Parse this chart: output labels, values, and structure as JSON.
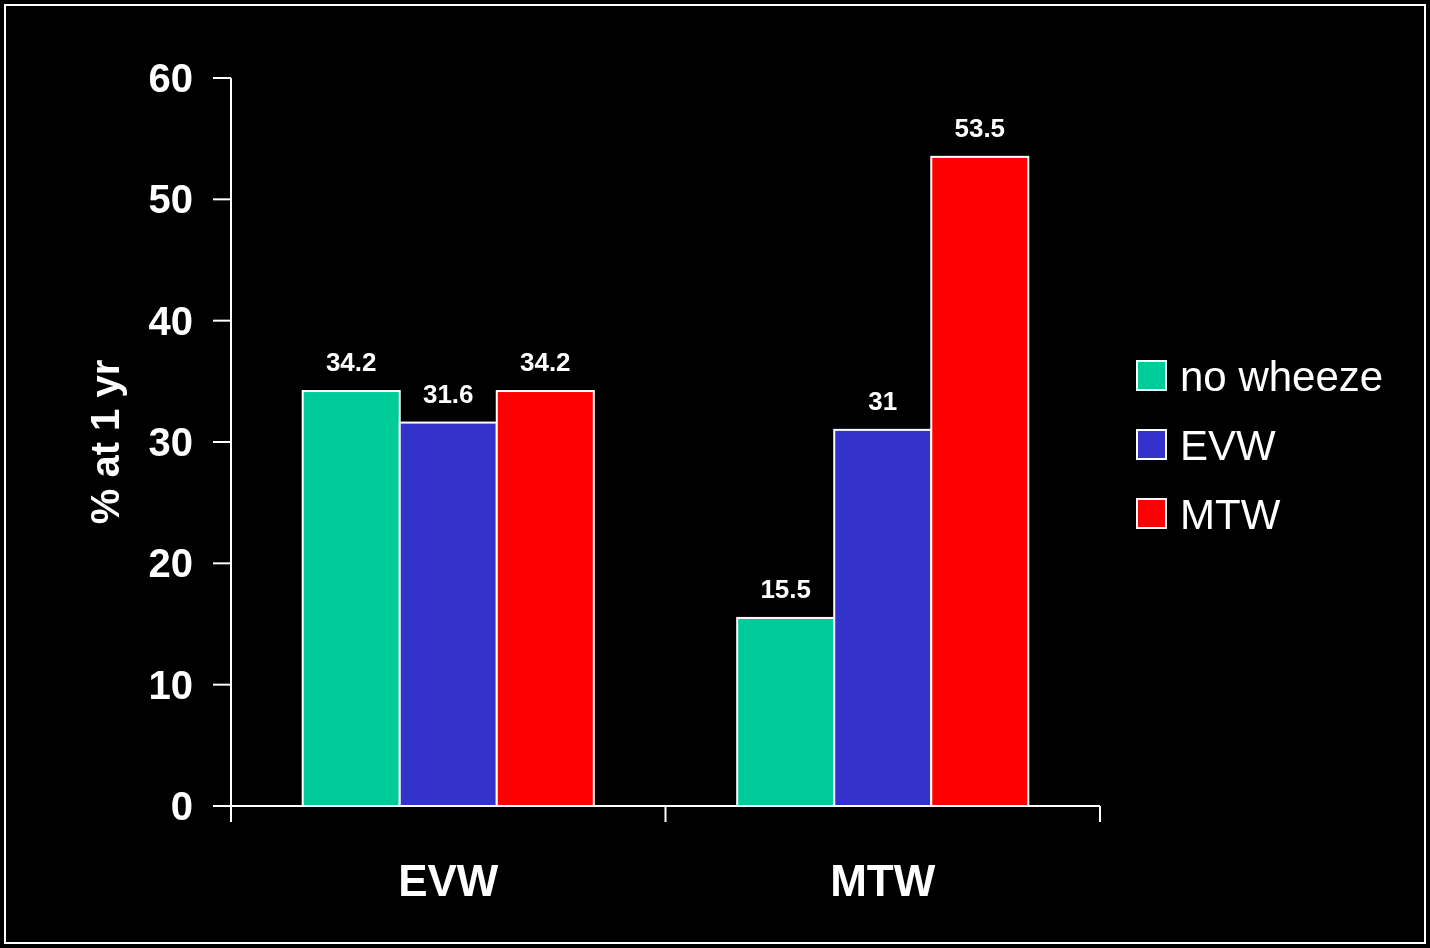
{
  "chart_data": {
    "type": "bar",
    "ylabel": "% at 1 yr",
    "categories": [
      "EVW",
      "MTW"
    ],
    "series": [
      {
        "name": "no wheeze",
        "color": "#00cc99",
        "values": [
          34.2,
          15.5
        ]
      },
      {
        "name": "EVW",
        "color": "#3333cc",
        "values": [
          31.6,
          31
        ]
      },
      {
        "name": "MTW",
        "color": "#ff0000",
        "values": [
          34.2,
          53.5
        ]
      }
    ],
    "ylim": [
      0,
      60
    ],
    "yticks": [
      0,
      10,
      20,
      30,
      40,
      50,
      60
    ],
    "data_labels": true,
    "legend": "right",
    "grid": false
  }
}
